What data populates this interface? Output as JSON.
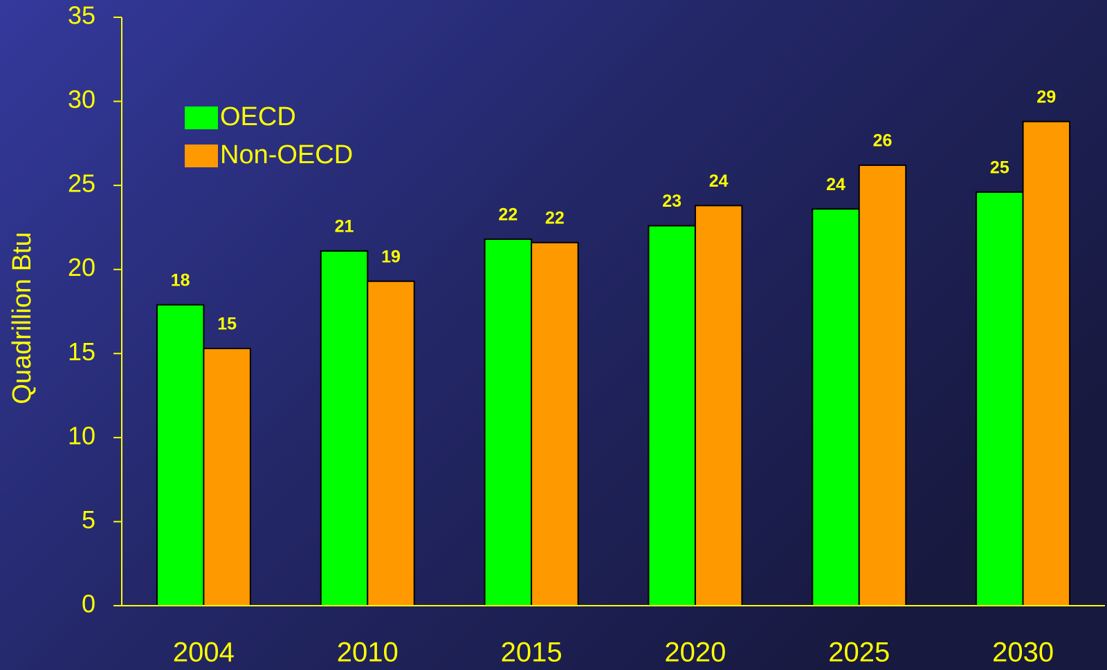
{
  "chart_data": {
    "type": "bar",
    "y_label": "Quadrillion Btu",
    "categories": [
      "2004",
      "2010",
      "2015",
      "2020",
      "2025",
      "2030"
    ],
    "series": [
      {
        "name": "OECD",
        "color": "#00ff00",
        "values": [
          17.9,
          21.1,
          21.8,
          22.6,
          23.6,
          24.6
        ],
        "value_labels": [
          "18",
          "21",
          "22",
          "23",
          "24",
          "25"
        ]
      },
      {
        "name": "Non-OECD",
        "color": "#ff9900",
        "values": [
          15.3,
          19.3,
          21.6,
          23.8,
          26.2,
          28.8
        ],
        "value_labels": [
          "15",
          "19",
          "22",
          "24",
          "26",
          "29"
        ]
      }
    ],
    "ylim": [
      0,
      35
    ],
    "yticks": [
      0,
      5,
      10,
      15,
      20,
      25,
      30,
      35
    ],
    "grid": false,
    "legend": "upper left"
  }
}
